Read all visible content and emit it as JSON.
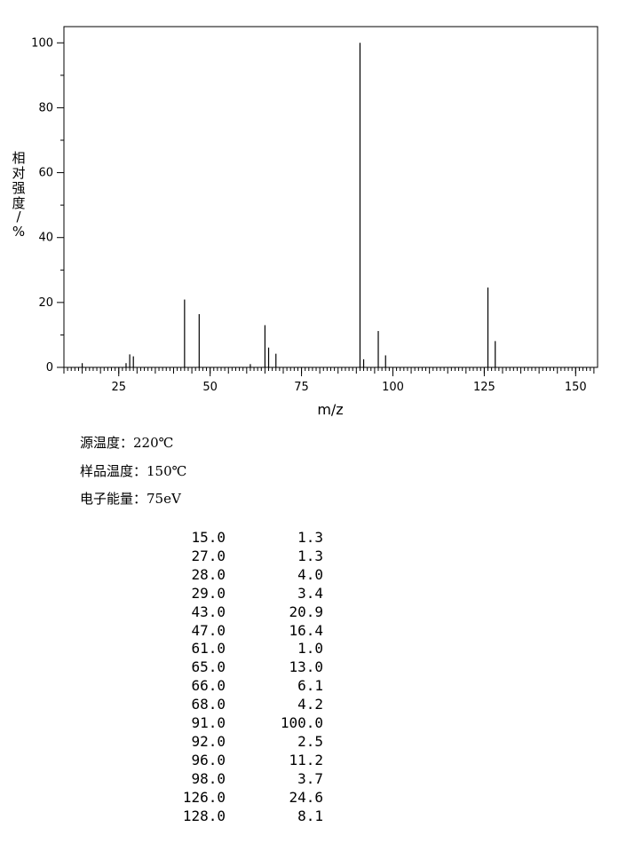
{
  "chart_data": {
    "type": "bar",
    "title": "",
    "xlabel": "m/z",
    "ylabel": "相对强度/%",
    "xlim": [
      10,
      156
    ],
    "ylim": [
      0,
      105
    ],
    "xticks": [
      25,
      50,
      75,
      100,
      125,
      150
    ],
    "yticks": [
      0,
      20,
      40,
      60,
      80,
      100
    ],
    "grid": false,
    "peaks": [
      {
        "mz": 15.0,
        "intensity": 1.3
      },
      {
        "mz": 27.0,
        "intensity": 1.3
      },
      {
        "mz": 28.0,
        "intensity": 4.0
      },
      {
        "mz": 29.0,
        "intensity": 3.4
      },
      {
        "mz": 43.0,
        "intensity": 20.9
      },
      {
        "mz": 47.0,
        "intensity": 16.4
      },
      {
        "mz": 61.0,
        "intensity": 1.0
      },
      {
        "mz": 65.0,
        "intensity": 13.0
      },
      {
        "mz": 66.0,
        "intensity": 6.1
      },
      {
        "mz": 68.0,
        "intensity": 4.2
      },
      {
        "mz": 91.0,
        "intensity": 100.0
      },
      {
        "mz": 92.0,
        "intensity": 2.5
      },
      {
        "mz": 96.0,
        "intensity": 11.2
      },
      {
        "mz": 98.0,
        "intensity": 3.7
      },
      {
        "mz": 126.0,
        "intensity": 24.6
      },
      {
        "mz": 128.0,
        "intensity": 8.1
      }
    ]
  },
  "conditions": [
    {
      "label": "源温度：",
      "value": "220℃"
    },
    {
      "label": "样品温度：",
      "value": "150℃"
    },
    {
      "label": "电子能量：",
      "value": "75eV"
    }
  ],
  "table": [
    {
      "mz": "15.0",
      "abundance": "1.3"
    },
    {
      "mz": "27.0",
      "abundance": "1.3"
    },
    {
      "mz": "28.0",
      "abundance": "4.0"
    },
    {
      "mz": "29.0",
      "abundance": "3.4"
    },
    {
      "mz": "43.0",
      "abundance": "20.9"
    },
    {
      "mz": "47.0",
      "abundance": "16.4"
    },
    {
      "mz": "61.0",
      "abundance": "1.0"
    },
    {
      "mz": "65.0",
      "abundance": "13.0"
    },
    {
      "mz": "66.0",
      "abundance": "6.1"
    },
    {
      "mz": "68.0",
      "abundance": "4.2"
    },
    {
      "mz": "91.0",
      "abundance": "100.0"
    },
    {
      "mz": "92.0",
      "abundance": "2.5"
    },
    {
      "mz": "96.0",
      "abundance": "11.2"
    },
    {
      "mz": "98.0",
      "abundance": "3.7"
    },
    {
      "mz": "126.0",
      "abundance": "24.6"
    },
    {
      "mz": "128.0",
      "abundance": "8.1"
    }
  ]
}
